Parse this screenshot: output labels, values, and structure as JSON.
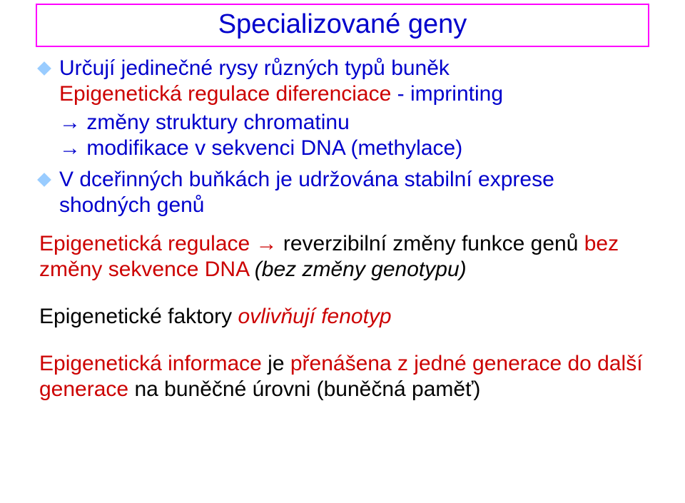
{
  "colors": {
    "title_text": "#0000cc",
    "title_border": "#ff00ff",
    "diamond_fill": "#99ccff",
    "text_blue": "#0000cc",
    "text_red": "#cc0000",
    "text_black": "#000000"
  },
  "fontsize": {
    "title": 38,
    "body": 30
  },
  "title": "Specializované geny",
  "bullet1": {
    "line1": "Určují jedinečné rysy různých typů buněk",
    "line2a": "Epigenetická regulace diferenciace ",
    "line2b": "- imprinting"
  },
  "arrow1": "→ změny struktury chromatinu",
  "arrow2": "→ modifikace v sekvenci DNA (methylace)",
  "bullet2": {
    "line1": "V dceřinných buňkách je udržována stabilní exprese",
    "line2": "shodných genů"
  },
  "mid1": {
    "a": "Epigenetická regulace → ",
    "b": "reverzibilní změny funkce genů ",
    "c": "bez změny sekvence DNA ",
    "d": "(bez změny genotypu)"
  },
  "mid2": {
    "a": "Epigenetické faktory ",
    "b": "ovlivňují fenotyp"
  },
  "mid3": {
    "a": "Epigenetická informace ",
    "b": "je ",
    "c": "přenášena z jedné generace do další generace ",
    "d": "na buněčné úrovni (buněčná paměť)"
  }
}
